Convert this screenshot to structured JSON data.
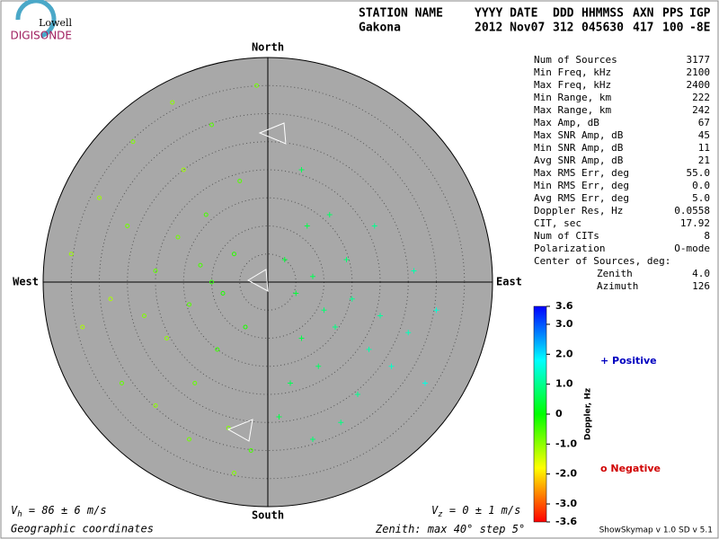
{
  "logo": {
    "line1": "Lowell",
    "line2": "DIGISONDE"
  },
  "header": {
    "labels": [
      "STATION NAME",
      "YYYY DATE",
      "DDD",
      "HHMMSS",
      "AXN",
      "PPS",
      "IGP"
    ],
    "values": [
      "Gakona",
      "2012 Nov07",
      "312",
      "045630",
      "417",
      "100",
      "-8E"
    ]
  },
  "stats": [
    [
      "Num of Sources",
      "3177"
    ],
    [
      "Min Freq, kHz",
      "2100"
    ],
    [
      "Max Freq, kHz",
      "2400"
    ],
    [
      "Min Range, km",
      "222"
    ],
    [
      "Max Range, km",
      "242"
    ],
    [
      "Max Amp, dB",
      "67"
    ],
    [
      "Max SNR Amp, dB",
      "45"
    ],
    [
      "Min SNR Amp, dB",
      "11"
    ],
    [
      "Avg SNR Amp, dB",
      "21"
    ],
    [
      "Max RMS Err, deg",
      "55.0"
    ],
    [
      "Min RMS Err, deg",
      "0.0"
    ],
    [
      "Avg RMS Err, deg",
      "5.0"
    ],
    [
      "Doppler Res, Hz",
      "0.0558"
    ],
    [
      "CIT, sec",
      "17.92"
    ],
    [
      "Num of CITs",
      "8"
    ],
    [
      "Polarization",
      "O-mode"
    ]
  ],
  "center": {
    "title": "Center of Sources, deg:",
    "rows": [
      [
        "Zenith",
        "4.0"
      ],
      [
        "Azimuth",
        "126"
      ]
    ]
  },
  "directions": {
    "north": "North",
    "south": "South",
    "east": "East",
    "west": "West"
  },
  "footer": {
    "vh": [
      "V",
      "h",
      " = 86 ± 6 m/s"
    ],
    "vz": [
      "V",
      "z",
      " = 0 ± 1 m/s"
    ],
    "coords": "Geographic coordinates",
    "zenith_text": [
      "Zenith: max ",
      "°  step ",
      "°"
    ],
    "zenith_max": 40,
    "zenith_step": 5,
    "version": "ShowSkymap v 1.0  SD v 5.1"
  },
  "colorbar": {
    "label": "Doppler, Hz",
    "lim": [
      -3.6,
      3.6
    ],
    "ticks": [
      3.6,
      {
        "value": 3,
        "label": "3.0"
      },
      {
        "value": 2,
        "label": "2.0"
      },
      {
        "value": 1,
        "label": "1.0"
      },
      0,
      {
        "value": -1,
        "label": "-1.0"
      },
      {
        "value": -2,
        "label": "-2.0"
      },
      {
        "value": -3,
        "label": "-3.0"
      },
      -3.6
    ]
  },
  "legend": {
    "positive": "+ Positive",
    "negative": "o Negative",
    "positive_color": "#0000c0",
    "negative_color": "#d00000"
  },
  "sources": {
    "east": [
      -10,
      -12,
      -8,
      -14,
      -6,
      -16,
      -20,
      -18,
      -9,
      -4,
      -22,
      -11,
      -5,
      -15,
      -25,
      -28,
      -13,
      -7,
      -3,
      -20,
      -30,
      -24,
      -10,
      -2,
      -33,
      -17,
      -26,
      -6,
      -35,
      -14,
      5,
      8,
      10,
      12,
      6,
      15,
      3,
      18,
      9,
      14,
      20,
      4,
      7,
      22,
      16,
      11,
      25,
      2,
      13,
      26,
      19,
      8,
      28,
      6,
      30
    ],
    "north": [
      0,
      3,
      -2,
      -4,
      5,
      8,
      2,
      -10,
      -12,
      -8,
      -6,
      12,
      18,
      20,
      10,
      -3,
      -18,
      -26,
      -30,
      -22,
      15,
      25,
      28,
      35,
      -8,
      32,
      -18,
      -34,
      5,
      -28,
      -2,
      1,
      -5,
      -8,
      -10,
      -3,
      4,
      -12,
      -15,
      4,
      -6,
      -18,
      10,
      -15,
      -20,
      12,
      -9,
      -24,
      -25,
      2,
      10,
      -28,
      -18,
      20,
      -5
    ],
    "doppler": [
      -0.3,
      -0.5,
      -0.2,
      -0.6,
      -0.3,
      -0.8,
      -0.7,
      -1.0,
      -0.4,
      -0.2,
      -0.9,
      -0.5,
      -0.6,
      -1.1,
      -0.8,
      -1.2,
      -0.7,
      -0.9,
      -0.5,
      -1.0,
      -1.1,
      -0.9,
      -0.6,
      -0.8,
      -1.2,
      -1.0,
      -0.7,
      -0.9,
      -1.1,
      -0.8,
      0.4,
      0.6,
      0.8,
      0.9,
      0.5,
      1.0,
      0.4,
      1.2,
      0.7,
      0.8,
      1.1,
      0.6,
      0.5,
      1.4,
      1.0,
      0.7,
      1.3,
      0.5,
      0.9,
      1.2,
      1.0,
      0.8,
      1.6,
      0.6,
      1.5
    ]
  }
}
